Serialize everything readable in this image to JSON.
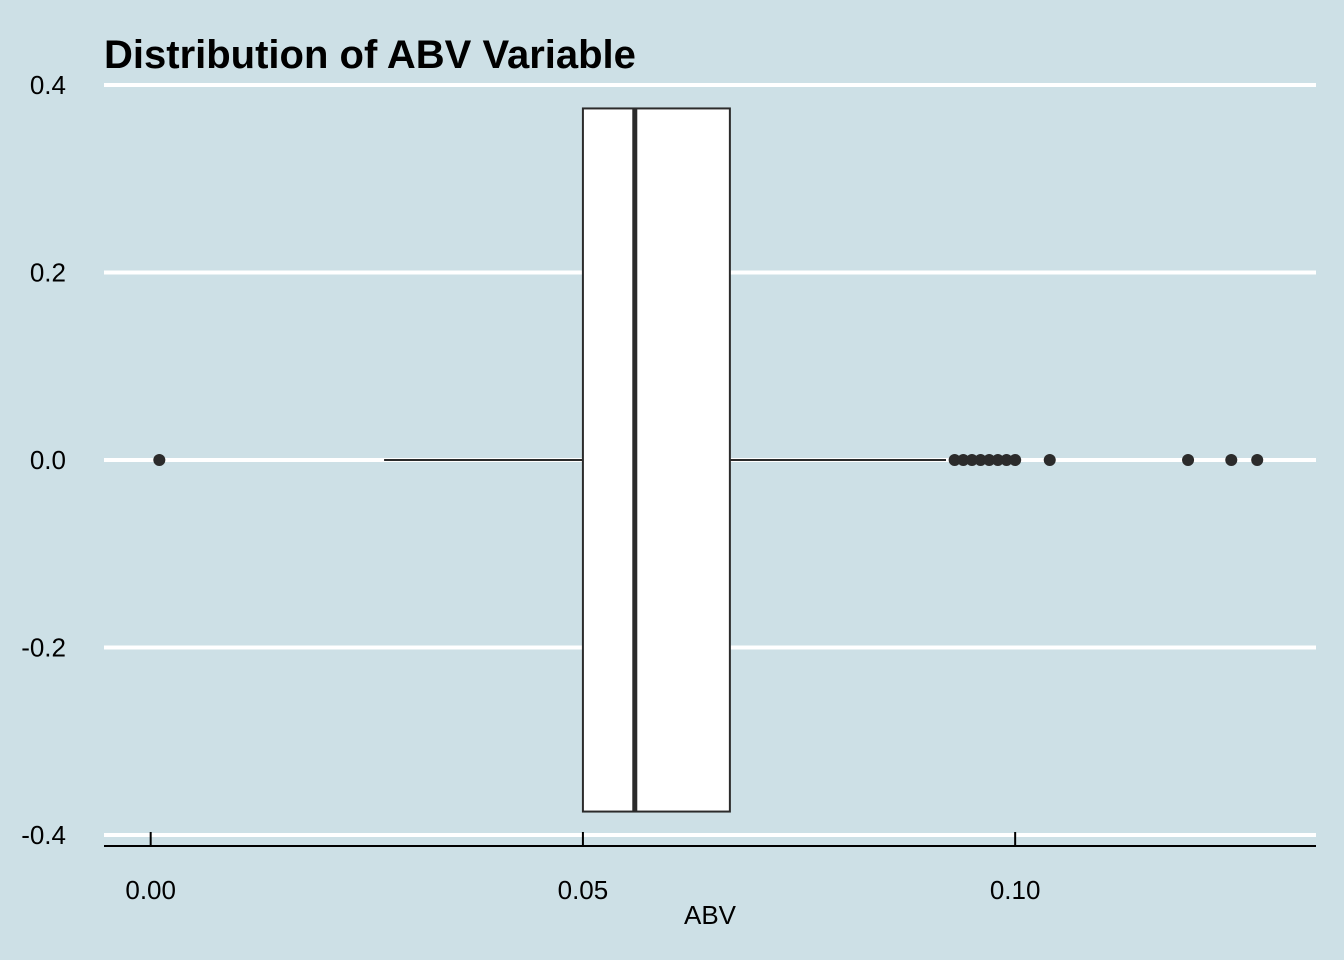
{
  "chart_data": {
    "type": "boxplot",
    "title": "Distribution of ABV Variable",
    "xlabel": "ABV",
    "ylabel": "",
    "xlim": [
      -0.0054,
      0.1348
    ],
    "ylim": [
      -0.4,
      0.4
    ],
    "x_ticks": [
      {
        "value": 0.0,
        "label": "0.00"
      },
      {
        "value": 0.05,
        "label": "0.05"
      },
      {
        "value": 0.1,
        "label": "0.10"
      }
    ],
    "y_ticks": [
      {
        "value": 0.4,
        "label": "0.4"
      },
      {
        "value": 0.2,
        "label": "0.2"
      },
      {
        "value": 0.0,
        "label": "0.0"
      },
      {
        "value": -0.2,
        "label": "-0.2"
      },
      {
        "value": -0.4,
        "label": "-0.4"
      }
    ],
    "grid": "horizontal",
    "box": {
      "whisker_low": 0.027,
      "q1": 0.05,
      "median": 0.056,
      "q3": 0.067,
      "whisker_high": 0.092,
      "y_center": 0.0,
      "half_height": 0.375
    },
    "outliers": [
      0.001,
      0.093,
      0.094,
      0.095,
      0.096,
      0.097,
      0.098,
      0.099,
      0.1,
      0.104,
      0.12,
      0.125,
      0.128
    ]
  },
  "colors": {
    "background": "#cde0e6",
    "grid": "#ffffff",
    "box_fill": "#ffffff",
    "stroke": "#2b2b2b"
  }
}
